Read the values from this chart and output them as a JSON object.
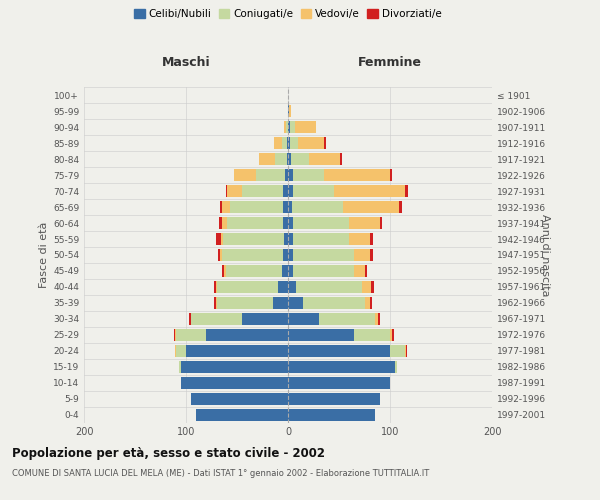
{
  "age_groups": [
    "0-4",
    "5-9",
    "10-14",
    "15-19",
    "20-24",
    "25-29",
    "30-34",
    "35-39",
    "40-44",
    "45-49",
    "50-54",
    "55-59",
    "60-64",
    "65-69",
    "70-74",
    "75-79",
    "80-84",
    "85-89",
    "90-94",
    "95-99",
    "100+"
  ],
  "birth_years": [
    "1997-2001",
    "1992-1996",
    "1987-1991",
    "1982-1986",
    "1977-1981",
    "1972-1976",
    "1967-1971",
    "1962-1966",
    "1957-1961",
    "1952-1956",
    "1947-1951",
    "1942-1946",
    "1937-1941",
    "1932-1936",
    "1927-1931",
    "1922-1926",
    "1917-1921",
    "1912-1916",
    "1907-1911",
    "1902-1906",
    "≤ 1901"
  ],
  "male": {
    "celibi": [
      90,
      95,
      105,
      105,
      100,
      80,
      45,
      15,
      10,
      6,
      5,
      4,
      5,
      5,
      5,
      3,
      1,
      1,
      0,
      0,
      0
    ],
    "coniugati": [
      0,
      0,
      0,
      2,
      10,
      30,
      50,
      55,
      60,
      55,
      60,
      60,
      55,
      52,
      40,
      28,
      12,
      5,
      2,
      0,
      0
    ],
    "vedovi": [
      0,
      0,
      0,
      0,
      1,
      1,
      0,
      1,
      1,
      2,
      2,
      2,
      5,
      8,
      15,
      22,
      15,
      8,
      2,
      0,
      0
    ],
    "divorziati": [
      0,
      0,
      0,
      0,
      0,
      1,
      2,
      2,
      2,
      2,
      2,
      5,
      3,
      2,
      1,
      0,
      0,
      0,
      0,
      0,
      0
    ]
  },
  "female": {
    "nubili": [
      85,
      90,
      100,
      105,
      100,
      65,
      30,
      15,
      8,
      5,
      5,
      5,
      5,
      4,
      5,
      5,
      3,
      2,
      2,
      1,
      0
    ],
    "coniugate": [
      0,
      0,
      0,
      2,
      15,
      35,
      55,
      60,
      65,
      60,
      60,
      55,
      55,
      50,
      40,
      30,
      18,
      8,
      5,
      0,
      0
    ],
    "vedove": [
      0,
      0,
      0,
      0,
      1,
      2,
      3,
      5,
      8,
      10,
      15,
      20,
      30,
      55,
      70,
      65,
      30,
      25,
      20,
      2,
      0
    ],
    "divorziate": [
      0,
      0,
      0,
      0,
      1,
      2,
      2,
      2,
      3,
      2,
      3,
      3,
      2,
      3,
      3,
      2,
      2,
      2,
      0,
      0,
      0
    ]
  },
  "colors": {
    "celibi": "#3A6EA5",
    "coniugati": "#C5D9A0",
    "vedovi": "#F5C26B",
    "divorziati": "#D12020"
  },
  "xlim": 200,
  "title": "Popolazione per età, sesso e stato civile - 2002",
  "subtitle": "COMUNE DI SANTA LUCIA DEL MELA (ME) - Dati ISTAT 1° gennaio 2002 - Elaborazione TUTTITALIA.IT",
  "ylabel_left": "Fasce di età",
  "ylabel_right": "Anni di nascita",
  "label_maschi": "Maschi",
  "label_femmine": "Femmine",
  "bg_color": "#f0f0eb",
  "bar_height": 0.75
}
